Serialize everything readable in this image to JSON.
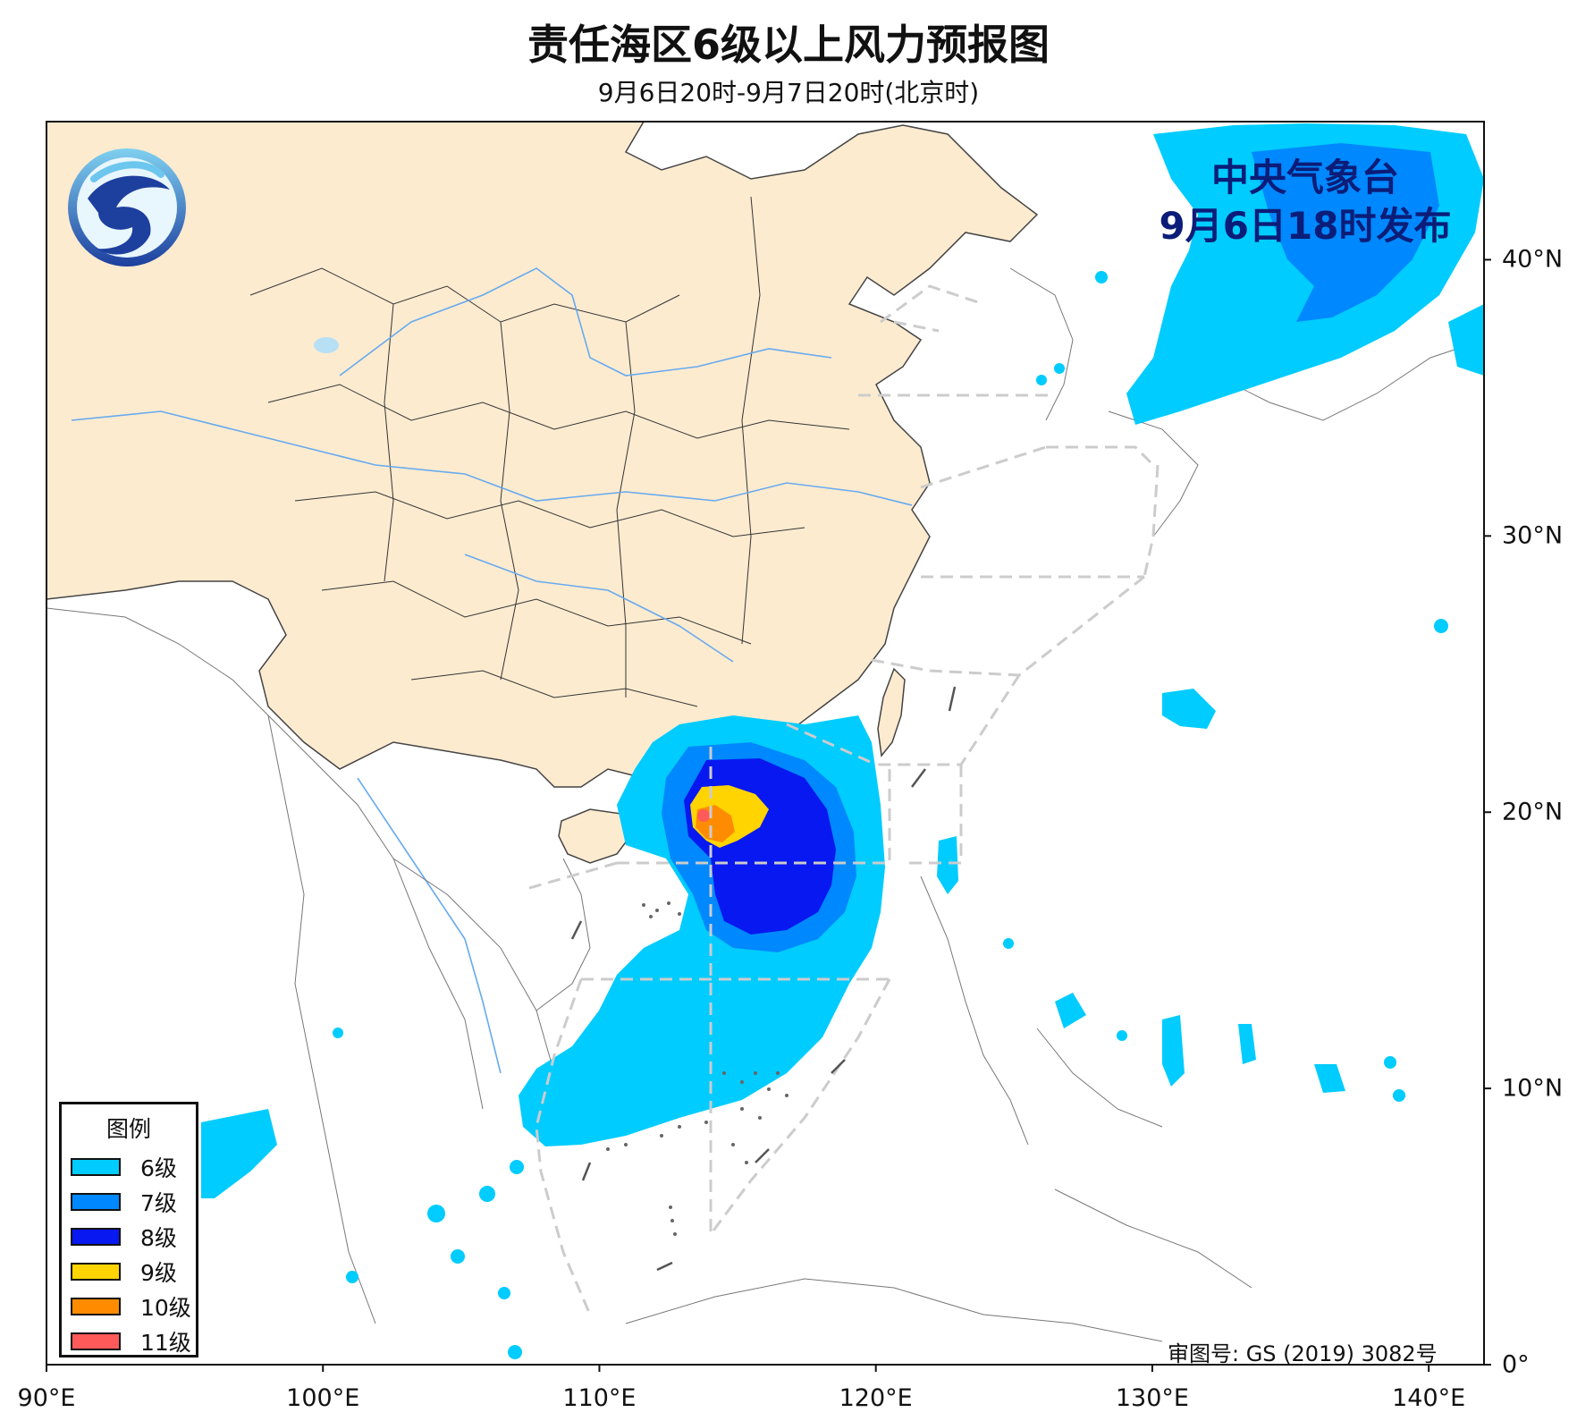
{
  "title": "责任海区6级以上风力预报图",
  "subtitle": "9月6日20时-9月7日20时(北京时)",
  "issuer": {
    "org": "中央气象台",
    "time": "9月6日18时发布"
  },
  "approval_number": "审图号: GS (2019) 3082号",
  "axes": {
    "x_ticks": [
      {
        "value": 90,
        "label": "90°E"
      },
      {
        "value": 100,
        "label": "100°E"
      },
      {
        "value": 110,
        "label": "110°E"
      },
      {
        "value": 120,
        "label": "120°E"
      },
      {
        "value": 130,
        "label": "130°E"
      },
      {
        "value": 140,
        "label": "140°E"
      }
    ],
    "y_ticks": [
      {
        "value": 0,
        "label": "0°"
      },
      {
        "value": 10,
        "label": "10°N"
      },
      {
        "value": 20,
        "label": "20°N"
      },
      {
        "value": 30,
        "label": "30°N"
      },
      {
        "value": 40,
        "label": "40°N"
      }
    ],
    "lon_range": [
      90,
      142
    ],
    "lat_range": [
      0,
      45
    ]
  },
  "legend": {
    "title": "图例",
    "items": [
      {
        "label": "6级",
        "color": "#00ccff"
      },
      {
        "label": "7级",
        "color": "#0088ff"
      },
      {
        "label": "8级",
        "color": "#0818f0"
      },
      {
        "label": "9级",
        "color": "#ffd400"
      },
      {
        "label": "10级",
        "color": "#ff8c00"
      },
      {
        "label": "11级",
        "color": "#ff5a5a"
      }
    ]
  },
  "colors": {
    "land_china": "#fdebd0",
    "sea": "#ffffff",
    "border": "#333333",
    "river": "#66aaee",
    "sea_zone_line": "#cccccc",
    "issuer_text": "#0b1d78"
  },
  "logo": {
    "icon": "cma-logo-icon"
  }
}
